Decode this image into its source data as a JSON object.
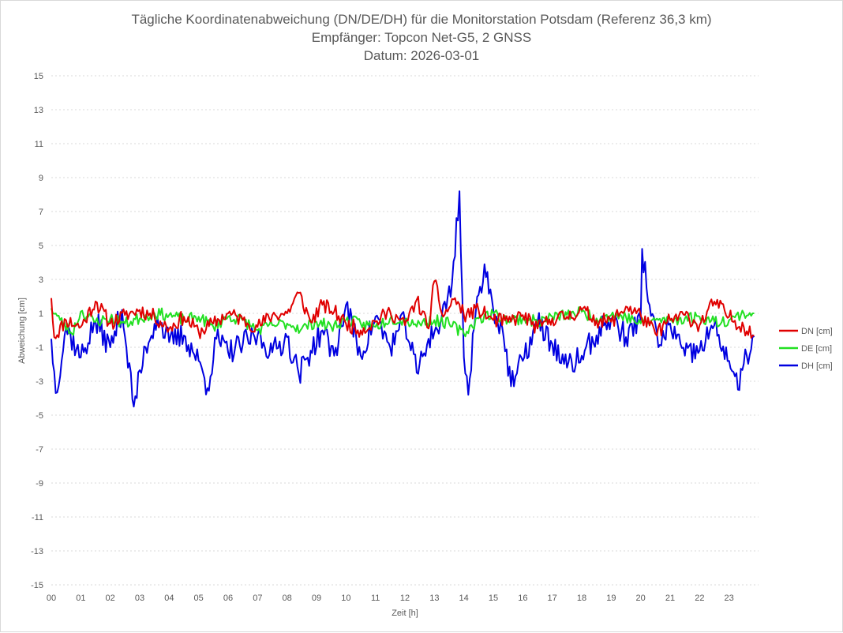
{
  "chart_data": {
    "type": "line",
    "title_lines": [
      "Tägliche Koordinatenabweichung (DN/DE/DH) für die Monitorstation Potsdam (Referenz 36,3 km)",
      "Empfänger: Topcon Net-G5, 2 GNSS",
      "Datum: 2026-03-01"
    ],
    "xlabel": "Zeit [h]",
    "ylabel": "Abweichung [cm]",
    "x_tick_labels": [
      "00",
      "01",
      "02",
      "03",
      "04",
      "05",
      "06",
      "07",
      "08",
      "09",
      "10",
      "11",
      "12",
      "13",
      "14",
      "15",
      "16",
      "17",
      "18",
      "19",
      "20",
      "21",
      "22",
      "23"
    ],
    "xlim": [
      0,
      24
    ],
    "ylim": [
      -15,
      15
    ],
    "y_ticks": [
      15,
      13,
      11,
      9,
      7,
      5,
      3,
      1,
      -1,
      -3,
      -5,
      -7,
      -9,
      -11,
      -13,
      -15
    ],
    "grid": "horizontal dotted",
    "legend_position": "right",
    "sample_interval_h": 0.05,
    "series": [
      {
        "name": "DN [cm]",
        "color": "#e00000",
        "anchors": [
          [
            0,
            1.9
          ],
          [
            0.1,
            -0.4
          ],
          [
            0.5,
            0.6
          ],
          [
            1.0,
            0.2
          ],
          [
            1.5,
            1.7
          ],
          [
            2.0,
            0.4
          ],
          [
            2.5,
            0.9
          ],
          [
            3.0,
            1.2
          ],
          [
            3.5,
            0.8
          ],
          [
            4.0,
            0.1
          ],
          [
            4.5,
            0.8
          ],
          [
            5.0,
            -0.1
          ],
          [
            5.5,
            0.4
          ],
          [
            6.0,
            1.0
          ],
          [
            6.5,
            0.6
          ],
          [
            7.0,
            0.2
          ],
          [
            7.5,
            0.9
          ],
          [
            8.0,
            1.0
          ],
          [
            8.4,
            2.2
          ],
          [
            8.8,
            0.5
          ],
          [
            9.2,
            1.5
          ],
          [
            9.6,
            1.1
          ],
          [
            10.0,
            0.4
          ],
          [
            10.5,
            0.0
          ],
          [
            11.0,
            0.5
          ],
          [
            11.5,
            1.1
          ],
          [
            12.0,
            0.3
          ],
          [
            12.4,
            1.8
          ],
          [
            12.8,
            0.1
          ],
          [
            13.0,
            2.9
          ],
          [
            13.3,
            0.8
          ],
          [
            13.7,
            1.9
          ],
          [
            14.0,
            0.9
          ],
          [
            14.5,
            1.2
          ],
          [
            15.0,
            0.6
          ],
          [
            15.5,
            0.5
          ],
          [
            16.0,
            0.9
          ],
          [
            16.5,
            0.1
          ],
          [
            17.0,
            0.7
          ],
          [
            17.5,
            0.8
          ],
          [
            18.0,
            1.2
          ],
          [
            18.5,
            0.6
          ],
          [
            19.0,
            0.5
          ],
          [
            19.5,
            1.4
          ],
          [
            20.0,
            0.9
          ],
          [
            20.5,
            -0.2
          ],
          [
            21.0,
            0.6
          ],
          [
            21.5,
            0.9
          ],
          [
            22.0,
            0.3
          ],
          [
            22.5,
            1.7
          ],
          [
            23.0,
            0.8
          ],
          [
            23.5,
            0.2
          ],
          [
            23.85,
            -0.3
          ]
        ],
        "noise": 0.45,
        "seed": 11
      },
      {
        "name": "DE [cm]",
        "color": "#22e022",
        "anchors": [
          [
            0,
            1.3
          ],
          [
            0.3,
            0.6
          ],
          [
            0.7,
            -0.2
          ],
          [
            1.0,
            1.1
          ],
          [
            1.5,
            0.5
          ],
          [
            2.0,
            0.7
          ],
          [
            2.5,
            0.4
          ],
          [
            3.0,
            0.7
          ],
          [
            3.5,
            1.0
          ],
          [
            4.0,
            0.9
          ],
          [
            4.5,
            0.6
          ],
          [
            5.0,
            0.8
          ],
          [
            5.5,
            0.2
          ],
          [
            6.0,
            0.8
          ],
          [
            6.5,
            0.6
          ],
          [
            7.0,
            0.0
          ],
          [
            7.5,
            0.3
          ],
          [
            8.0,
            0.4
          ],
          [
            8.5,
            0.1
          ],
          [
            9.0,
            0.5
          ],
          [
            9.5,
            0.2
          ],
          [
            10.0,
            0.6
          ],
          [
            10.5,
            0.4
          ],
          [
            11.0,
            0.2
          ],
          [
            11.5,
            0.7
          ],
          [
            12.0,
            0.6
          ],
          [
            12.5,
            0.4
          ],
          [
            13.0,
            0.6
          ],
          [
            13.5,
            0.4
          ],
          [
            14.0,
            -0.2
          ],
          [
            14.5,
            0.7
          ],
          [
            15.0,
            1.0
          ],
          [
            15.5,
            0.6
          ],
          [
            16.0,
            0.7
          ],
          [
            16.5,
            0.5
          ],
          [
            17.0,
            0.8
          ],
          [
            17.5,
            0.9
          ],
          [
            18.0,
            1.1
          ],
          [
            18.5,
            0.7
          ],
          [
            19.0,
            0.9
          ],
          [
            19.5,
            0.8
          ],
          [
            20.0,
            0.4
          ],
          [
            20.5,
            0.6
          ],
          [
            21.0,
            0.6
          ],
          [
            21.5,
            0.7
          ],
          [
            22.0,
            0.8
          ],
          [
            22.5,
            0.5
          ],
          [
            23.0,
            0.6
          ],
          [
            23.5,
            1.0
          ],
          [
            23.85,
            1.0
          ]
        ],
        "noise": 0.35,
        "seed": 23
      },
      {
        "name": "DH [cm]",
        "color": "#0000e0",
        "anchors": [
          [
            0,
            -0.5
          ],
          [
            0.15,
            -3.7
          ],
          [
            0.5,
            0.2
          ],
          [
            1.0,
            -1.6
          ],
          [
            1.5,
            0.5
          ],
          [
            2.0,
            -1.0
          ],
          [
            2.4,
            1.2
          ],
          [
            2.8,
            -4.5
          ],
          [
            3.2,
            -1.0
          ],
          [
            3.6,
            0.8
          ],
          [
            4.0,
            -0.7
          ],
          [
            4.5,
            -0.3
          ],
          [
            5.0,
            -1.8
          ],
          [
            5.3,
            -3.4
          ],
          [
            5.6,
            -0.5
          ],
          [
            6.0,
            -1.3
          ],
          [
            6.5,
            -0.8
          ],
          [
            7.0,
            -0.3
          ],
          [
            7.5,
            -1.3
          ],
          [
            8.0,
            -0.4
          ],
          [
            8.4,
            -2.6
          ],
          [
            8.8,
            -1.2
          ],
          [
            9.2,
            0.0
          ],
          [
            9.6,
            -1.5
          ],
          [
            10.0,
            1.5
          ],
          [
            10.5,
            -1.5
          ],
          [
            11.0,
            0.8
          ],
          [
            11.5,
            -1.0
          ],
          [
            12.0,
            0.6
          ],
          [
            12.4,
            -2.5
          ],
          [
            12.8,
            -0.5
          ],
          [
            13.2,
            0.4
          ],
          [
            13.6,
            2.8
          ],
          [
            13.85,
            8.2
          ],
          [
            14.0,
            -1.6
          ],
          [
            14.15,
            -3.8
          ],
          [
            14.4,
            1.0
          ],
          [
            14.7,
            3.9
          ],
          [
            15.0,
            1.2
          ],
          [
            15.3,
            0.2
          ],
          [
            15.6,
            -3.3
          ],
          [
            16.0,
            -1.8
          ],
          [
            16.5,
            0.5
          ],
          [
            17.0,
            -0.8
          ],
          [
            17.5,
            -2.2
          ],
          [
            18.0,
            -1.5
          ],
          [
            18.5,
            -0.3
          ],
          [
            19.0,
            0.7
          ],
          [
            19.5,
            -0.4
          ],
          [
            20.0,
            0.6
          ],
          [
            20.05,
            4.8
          ],
          [
            20.3,
            1.5
          ],
          [
            20.6,
            -1.0
          ],
          [
            21.0,
            0.4
          ],
          [
            21.5,
            -1.5
          ],
          [
            22.0,
            -1.2
          ],
          [
            22.5,
            0.3
          ],
          [
            23.0,
            -1.8
          ],
          [
            23.3,
            -3.5
          ],
          [
            23.6,
            -1.5
          ],
          [
            23.85,
            -0.4
          ]
        ],
        "noise": 0.75,
        "seed": 37
      }
    ]
  }
}
